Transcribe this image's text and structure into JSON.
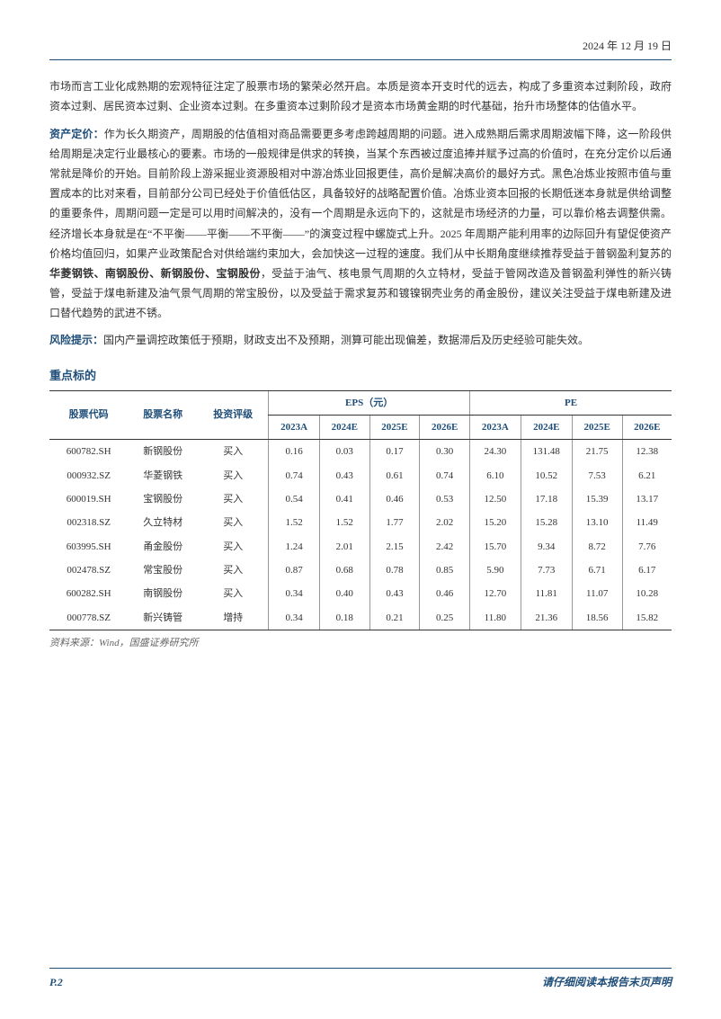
{
  "header": {
    "date": "2024 年 12 月 19 日"
  },
  "paragraphs": {
    "p1": "市场而言工业化成熟期的宏观特征注定了股票市场的繁荣必然开启。本质是资本开支时代的远去，构成了多重资本过剩阶段，政府资本过剩、居民资本过剩、企业资本过剩。在多重资本过剩阶段才是资本市场黄金期的时代基础，抬升市场整体的估值水平。",
    "label2": "资产定价：",
    "p2a": "作为长久期资产，周期股的估值相对商品需要更多考虑跨越周期的问题。进入成熟期后需求周期波幅下降，这一阶段供给周期是决定行业最核心的要素。市场的一般规律是供求的转换，当某个东西被过度追捧并赋予过高的价值时，在充分定价以后通常就是降价的开始。目前阶段上游采掘业资源股相对中游冶炼业回报更佳，高价是解决高价的最好方式。黑色冶炼业按照市值与重置成本的比对来看，目前部分公司已经处于价值低估区，具备较好的战略配置价值。冶炼业资本回报的长期低迷本身就是供给调整的重要条件，周期问题一定是可以用时间解决的，没有一个周期是永远向下的，这就是市场经济的力量，可以靠价格去调整供需。经济增长本身就是在“不平衡——平衡——不平衡——”的演变过程中螺旋式上升。2025 年周期产能利用率的边际回升有望促使资产价格均值回归，如果产业政策配合对供给端约束加大，会加快这一过程的速度。我们从中长期角度继续推荐受益于普钢盈利复苏的",
    "bold_names": "华菱钢铁、南钢股份、新钢股份、宝钢股份",
    "p2b": "，受益于油气、核电景气周期的久立特材，受益于管网改造及普钢盈利弹性的新兴铸管，受益于煤电新建及油气景气周期的常宝股份，以及受益于需求复苏和镀镍钢壳业务的甬金股份，建议关注受益于煤电新建及进口替代趋势的武进不锈。",
    "label3": "风险提示：",
    "p3": "国内产量调控政策低于预期，财政支出不及预期，测算可能出现偏差，数据滞后及历史经验可能失效。"
  },
  "table": {
    "title": "重点标的",
    "headers": {
      "code": "股票代码",
      "name": "股票名称",
      "rating": "投资评级",
      "eps_group": "EPS（元）",
      "pe_group": "PE",
      "y2023a": "2023A",
      "y2024e": "2024E",
      "y2025e": "2025E",
      "y2026e": "2026E"
    },
    "rows": [
      {
        "code": "600782.SH",
        "name": "新钢股份",
        "rating": "买入",
        "eps": [
          "0.16",
          "0.03",
          "0.17",
          "0.30"
        ],
        "pe": [
          "24.30",
          "131.48",
          "21.75",
          "12.38"
        ]
      },
      {
        "code": "000932.SZ",
        "name": "华菱钢铁",
        "rating": "买入",
        "eps": [
          "0.74",
          "0.43",
          "0.61",
          "0.74"
        ],
        "pe": [
          "6.10",
          "10.52",
          "7.53",
          "6.21"
        ]
      },
      {
        "code": "600019.SH",
        "name": "宝钢股份",
        "rating": "买入",
        "eps": [
          "0.54",
          "0.41",
          "0.46",
          "0.53"
        ],
        "pe": [
          "12.50",
          "17.18",
          "15.39",
          "13.17"
        ]
      },
      {
        "code": "002318.SZ",
        "name": "久立特材",
        "rating": "买入",
        "eps": [
          "1.52",
          "1.52",
          "1.77",
          "2.02"
        ],
        "pe": [
          "15.20",
          "15.28",
          "13.10",
          "11.49"
        ]
      },
      {
        "code": "603995.SH",
        "name": "甬金股份",
        "rating": "买入",
        "eps": [
          "1.24",
          "2.01",
          "2.15",
          "2.42"
        ],
        "pe": [
          "15.70",
          "9.34",
          "8.72",
          "7.76"
        ]
      },
      {
        "code": "002478.SZ",
        "name": "常宝股份",
        "rating": "买入",
        "eps": [
          "0.87",
          "0.68",
          "0.78",
          "0.85"
        ],
        "pe": [
          "5.90",
          "7.73",
          "6.71",
          "6.17"
        ]
      },
      {
        "code": "600282.SH",
        "name": "南钢股份",
        "rating": "买入",
        "eps": [
          "0.34",
          "0.40",
          "0.43",
          "0.46"
        ],
        "pe": [
          "12.70",
          "11.81",
          "11.07",
          "10.28"
        ]
      },
      {
        "code": "000778.SZ",
        "name": "新兴铸管",
        "rating": "增持",
        "eps": [
          "0.34",
          "0.18",
          "0.21",
          "0.25"
        ],
        "pe": [
          "11.80",
          "21.36",
          "18.56",
          "15.82"
        ]
      }
    ],
    "source": "资料来源：Wind，国盛证券研究所"
  },
  "footer": {
    "page": "P.2",
    "disclaimer": "请仔细阅读本报告末页声明"
  },
  "colors": {
    "accent": "#1f4e79",
    "text": "#333333",
    "border": "#333333",
    "light_border": "#999999"
  }
}
